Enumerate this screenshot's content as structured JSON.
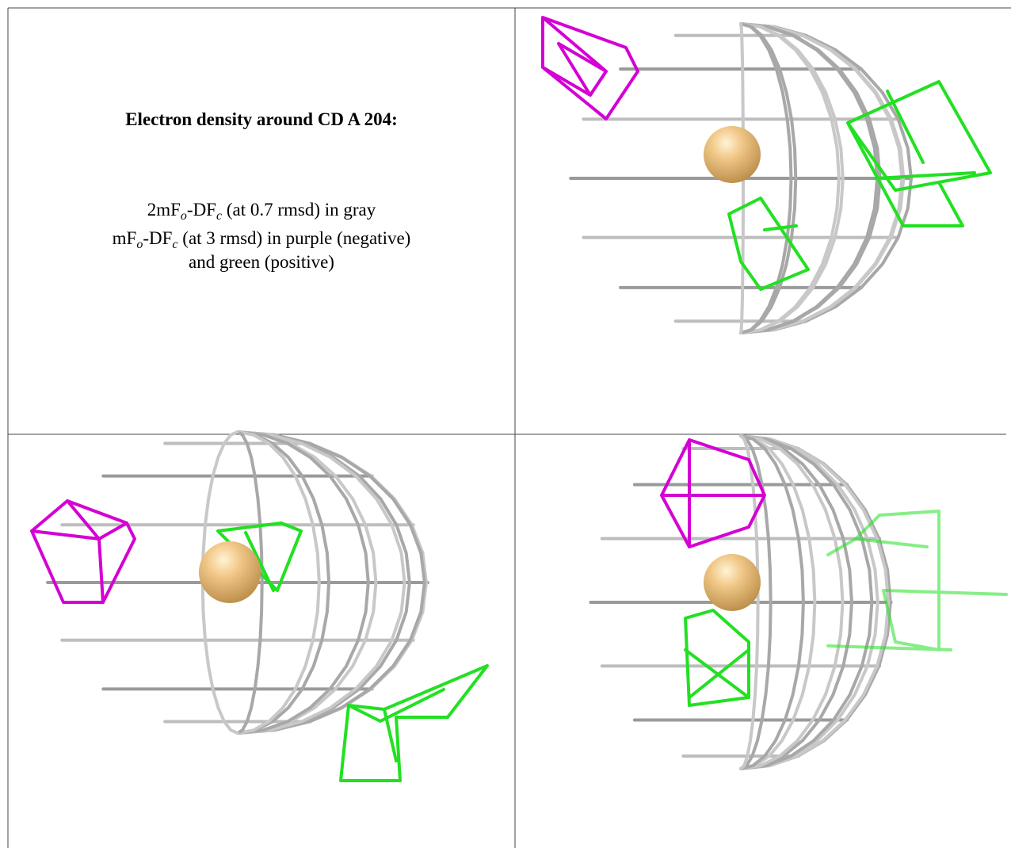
{
  "panel_text": {
    "title": "Electron density around CD A 204:",
    "lines": [
      [
        "2mF",
        "o",
        "-DF",
        "c",
        " (at 0.7 rmsd) in gray"
      ],
      [
        "mF",
        "o",
        "-DF",
        "c",
        " (at 3 rmsd) in purple (negative)"
      ],
      [
        "and green (positive)"
      ]
    ]
  }
}
